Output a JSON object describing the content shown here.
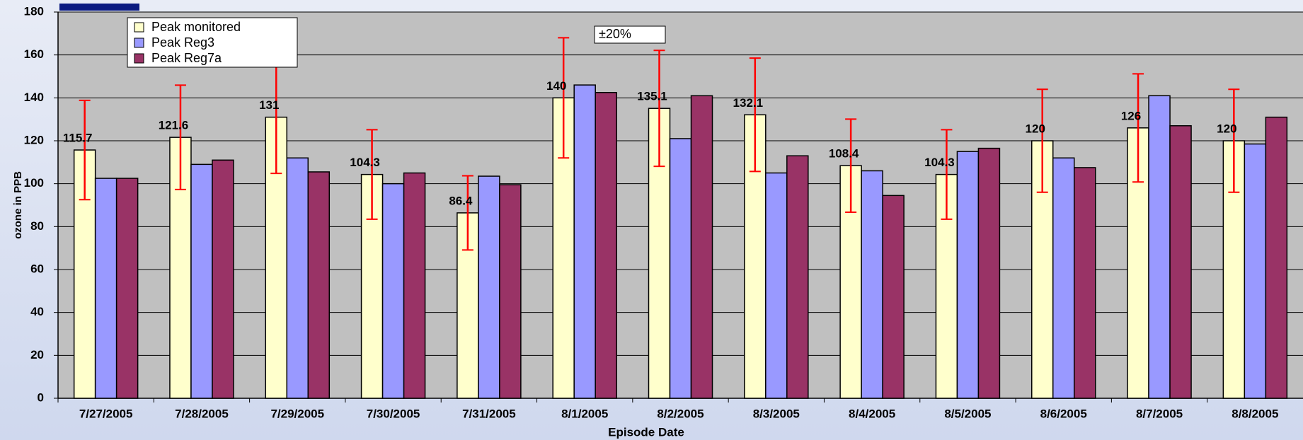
{
  "chart_data": {
    "type": "bar",
    "x_label": "Episode Date",
    "y_label": "ozone in PPB",
    "annotation": "±20%",
    "categories": [
      "7/27/2005",
      "7/28/2005",
      "7/29/2005",
      "7/30/2005",
      "7/31/2005",
      "8/1/2005",
      "8/2/2005",
      "8/3/2005",
      "8/4/2005",
      "8/5/2005",
      "8/6/2005",
      "8/7/2005",
      "8/8/2005"
    ],
    "series": [
      {
        "name": "Peak monitored",
        "color": "#ffffcc",
        "values": [
          115.7,
          121.6,
          131,
          104.3,
          86.4,
          140,
          135.1,
          132.1,
          108.4,
          104.3,
          120,
          126,
          120
        ],
        "errors": [
          23.14,
          24.32,
          26.2,
          20.86,
          17.28,
          28,
          27.02,
          26.42,
          21.68,
          20.86,
          24,
          25.2,
          24
        ],
        "error_color": "#ff0000",
        "show_labels": true
      },
      {
        "name": "Peak Reg3",
        "color": "#9999ff",
        "values": [
          102.5,
          109,
          112,
          100,
          103.5,
          146,
          121,
          105,
          106,
          115,
          112,
          141,
          118.5
        ]
      },
      {
        "name": "Peak Reg7a",
        "color": "#993366",
        "values": [
          102.5,
          111,
          105.5,
          105,
          99.5,
          142.5,
          141,
          113,
          94.5,
          116.5,
          107.5,
          127,
          131
        ]
      }
    ],
    "ylim": [
      0,
      180
    ],
    "yticks": [
      0,
      20,
      40,
      60,
      80,
      100,
      120,
      140,
      160,
      180
    ],
    "grid": true
  }
}
